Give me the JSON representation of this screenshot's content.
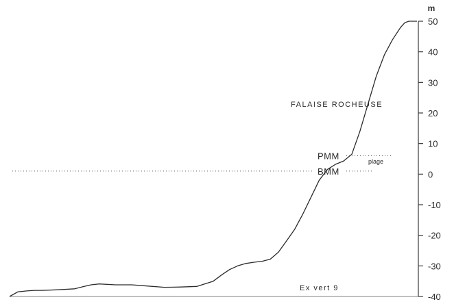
{
  "chart_data": {
    "type": "line",
    "title": "",
    "xlabel": "",
    "ylabel": "m",
    "ylim": [
      -40,
      50
    ],
    "yticks": [
      50,
      40,
      30,
      20,
      10,
      0,
      -10,
      -20,
      -30,
      -40
    ],
    "ytick_labels": [
      "50",
      "40",
      "30",
      "20",
      "10",
      "0",
      "-10",
      "-20",
      "-30",
      "-40"
    ],
    "grid": false,
    "legend": "none",
    "x": [
      0,
      2,
      4,
      6,
      8,
      12,
      16,
      18,
      20,
      22,
      26,
      30,
      34,
      38,
      42,
      46,
      50,
      52,
      54,
      56,
      58,
      60,
      62,
      64,
      66,
      68,
      70,
      72,
      74,
      76,
      78,
      80,
      82,
      84,
      86,
      88,
      90,
      92,
      94,
      96,
      97,
      98,
      99,
      100
    ],
    "series": [
      {
        "values": [
          -40,
          -38.5,
          -38.2,
          -38.0,
          -38.0,
          -37.8,
          -37.5,
          -36.8,
          -36.2,
          -35.9,
          -36.2,
          -36.2,
          -36.6,
          -37.0,
          -36.9,
          -36.7,
          -35.0,
          -33.0,
          -31.2,
          -30.0,
          -29.2,
          -28.8,
          -28.5,
          -27.8,
          -25.5,
          -21.8,
          -18.0,
          -13.0,
          -7.5,
          -2.0,
          1.5,
          3.2,
          4.3,
          6.5,
          14.0,
          23.0,
          32.0,
          39.0,
          44.0,
          48.0,
          49.5,
          50.0,
          50.0,
          50.0
        ]
      }
    ],
    "reference_lines": {
      "pmm": {
        "label": "PMM",
        "y": 6
      },
      "bmm": {
        "label": "BMM",
        "y": 1
      }
    },
    "annotations": {
      "falaise": "FALAISE  ROCHEUSE",
      "plage": "plage",
      "ex_vert": "Ex vert 9"
    }
  }
}
